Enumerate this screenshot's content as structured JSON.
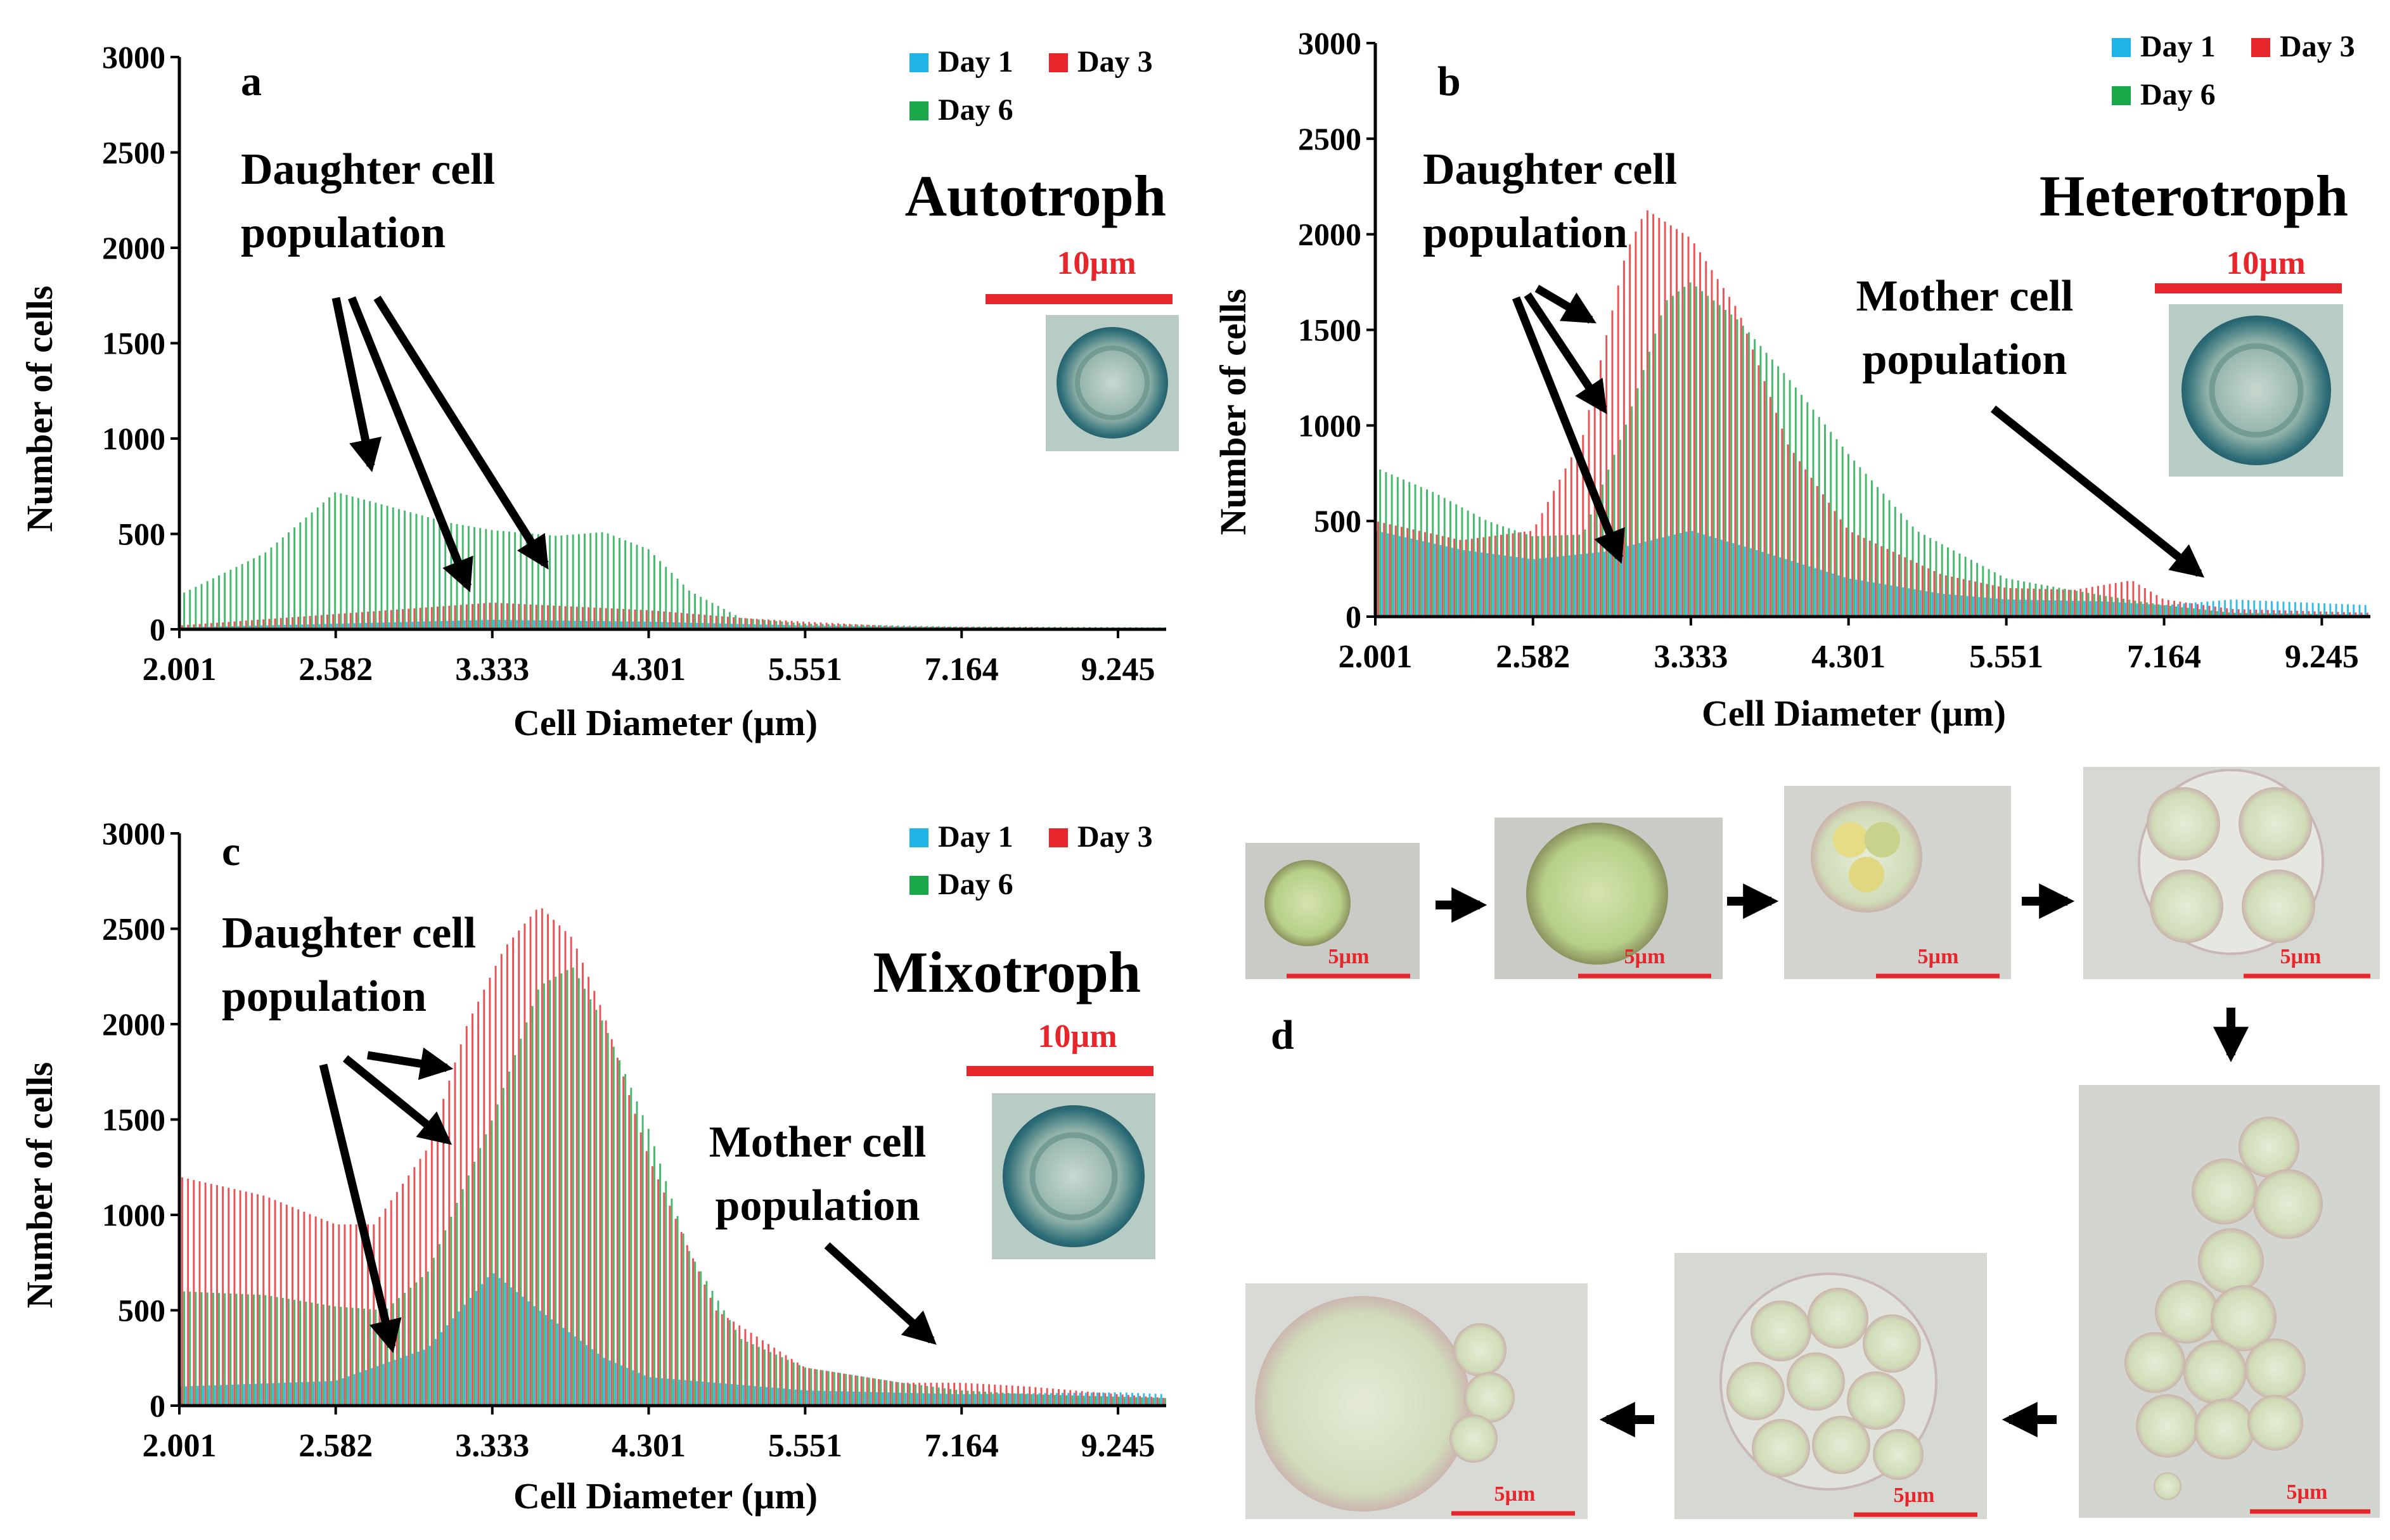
{
  "chart_data": [
    {
      "type": "bar",
      "panel_label": "a",
      "title": "Autotroph",
      "xlabel": "Cell Diameter (µm)",
      "ylabel": "Number of cells",
      "x_ticks": [
        "2.001",
        "2.582",
        "3.333",
        "4.301",
        "5.551",
        "7.164",
        "9.245"
      ],
      "x_range": [
        2.001,
        10.0
      ],
      "x_scale": "log",
      "ylim": [
        0,
        3000
      ],
      "y_ticks": [
        0,
        500,
        1000,
        1500,
        2000,
        2500,
        3000
      ],
      "legend": [
        "Day 1",
        "Day 3",
        "Day 6"
      ],
      "legend_position": "top-right",
      "series": [
        {
          "name": "Day 1",
          "color": "#1EB4E6",
          "profile": [
            [
              2.001,
              10
            ],
            [
              2.6,
              30
            ],
            [
              3.333,
              50
            ],
            [
              4.301,
              40
            ],
            [
              5.551,
              20
            ],
            [
              7.164,
              10
            ],
            [
              10.0,
              5
            ]
          ]
        },
        {
          "name": "Day 3",
          "color": "#E6262B",
          "profile": [
            [
              2.001,
              20
            ],
            [
              2.582,
              80
            ],
            [
              3.333,
              140
            ],
            [
              4.301,
              100
            ],
            [
              5.0,
              60
            ],
            [
              5.551,
              40
            ],
            [
              6.5,
              15
            ],
            [
              10.0,
              5
            ]
          ]
        },
        {
          "name": "Day 6",
          "color": "#1BA84A",
          "profile": [
            [
              2.001,
              180
            ],
            [
              2.3,
              400
            ],
            [
              2.582,
              720
            ],
            [
              2.8,
              650
            ],
            [
              3.1,
              560
            ],
            [
              3.333,
              520
            ],
            [
              3.7,
              490
            ],
            [
              4.0,
              510
            ],
            [
              4.3,
              420
            ],
            [
              4.6,
              200
            ],
            [
              5.0,
              60
            ],
            [
              5.551,
              30
            ],
            [
              7.0,
              15
            ],
            [
              10.0,
              10
            ]
          ]
        }
      ],
      "annotations": [
        {
          "id": "daughter",
          "text": [
            "Daughter cell",
            "population"
          ]
        }
      ],
      "scale_bar": "10µm"
    },
    {
      "type": "bar",
      "panel_label": "b",
      "title": "Heterotroph",
      "xlabel": "Cell Diameter (µm)",
      "ylabel": "Number of cells",
      "x_ticks": [
        "2.001",
        "2.582",
        "3.333",
        "4.301",
        "5.551",
        "7.164",
        "9.245"
      ],
      "x_range": [
        2.001,
        10.0
      ],
      "x_scale": "log",
      "ylim": [
        0,
        3000
      ],
      "y_ticks": [
        0,
        500,
        1000,
        1500,
        2000,
        2500,
        3000
      ],
      "legend": [
        "Day 1",
        "Day 3",
        "Day 6"
      ],
      "legend_position": "top-right",
      "series": [
        {
          "name": "Day 1",
          "color": "#1EB4E6",
          "profile": [
            [
              2.001,
              450
            ],
            [
              2.3,
              350
            ],
            [
              2.582,
              300
            ],
            [
              2.9,
              340
            ],
            [
              3.333,
              450
            ],
            [
              3.7,
              350
            ],
            [
              4.301,
              200
            ],
            [
              5.0,
              120
            ],
            [
              5.551,
              90
            ],
            [
              6.5,
              80
            ],
            [
              7.164,
              60
            ],
            [
              8.0,
              90
            ],
            [
              9.245,
              70
            ],
            [
              10.0,
              60
            ]
          ]
        },
        {
          "name": "Day 3",
          "color": "#E6262B",
          "profile": [
            [
              2.001,
              500
            ],
            [
              2.3,
              400
            ],
            [
              2.582,
              450
            ],
            [
              2.8,
              950
            ],
            [
              3.0,
              1900
            ],
            [
              3.1,
              2130
            ],
            [
              3.333,
              1980
            ],
            [
              3.6,
              1600
            ],
            [
              3.9,
              900
            ],
            [
              4.301,
              450
            ],
            [
              5.0,
              220
            ],
            [
              5.551,
              150
            ],
            [
              6.2,
              140
            ],
            [
              6.8,
              190
            ],
            [
              7.164,
              90
            ],
            [
              8.0,
              40
            ],
            [
              10.0,
              20
            ]
          ]
        },
        {
          "name": "Day 6",
          "color": "#1BA84A",
          "profile": [
            [
              2.001,
              780
            ],
            [
              2.2,
              650
            ],
            [
              2.4,
              500
            ],
            [
              2.582,
              420
            ],
            [
              2.8,
              430
            ],
            [
              3.0,
              1000
            ],
            [
              3.2,
              1650
            ],
            [
              3.333,
              1750
            ],
            [
              3.6,
              1550
            ],
            [
              3.9,
              1250
            ],
            [
              4.301,
              850
            ],
            [
              4.8,
              450
            ],
            [
              5.551,
              200
            ],
            [
              6.5,
              110
            ],
            [
              7.164,
              60
            ],
            [
              8.0,
              20
            ],
            [
              10.0,
              10
            ]
          ]
        }
      ],
      "annotations": [
        {
          "id": "daughter",
          "text": [
            "Daughter cell",
            "population"
          ]
        },
        {
          "id": "mother",
          "text": [
            "Mother cell",
            "population"
          ]
        }
      ],
      "scale_bar": "10µm"
    },
    {
      "type": "bar",
      "panel_label": "c",
      "title": "Mixotroph",
      "xlabel": "Cell Diameter (µm)",
      "ylabel": "Number of cells",
      "x_ticks": [
        "2.001",
        "2.582",
        "3.333",
        "4.301",
        "5.551",
        "7.164",
        "9.245"
      ],
      "x_range": [
        2.001,
        10.0
      ],
      "x_scale": "log",
      "ylim": [
        0,
        3000
      ],
      "y_ticks": [
        0,
        500,
        1000,
        1500,
        2000,
        2500,
        3000
      ],
      "legend": [
        "Day 1",
        "Day 3",
        "Day 6"
      ],
      "legend_position": "top-right",
      "series": [
        {
          "name": "Day 1",
          "color": "#1EB4E6",
          "profile": [
            [
              2.001,
              100
            ],
            [
              2.582,
              130
            ],
            [
              3.0,
              300
            ],
            [
              3.333,
              700
            ],
            [
              3.6,
              500
            ],
            [
              4.0,
              250
            ],
            [
              4.301,
              150
            ],
            [
              5.551,
              80
            ],
            [
              7.164,
              60
            ],
            [
              9.245,
              70
            ],
            [
              10.0,
              60
            ]
          ]
        },
        {
          "name": "Day 3",
          "color": "#E6262B",
          "profile": [
            [
              2.001,
              1200
            ],
            [
              2.3,
              1100
            ],
            [
              2.582,
              950
            ],
            [
              2.75,
              950
            ],
            [
              3.0,
              1350
            ],
            [
              3.2,
              2000
            ],
            [
              3.4,
              2400
            ],
            [
              3.6,
              2620
            ],
            [
              3.8,
              2450
            ],
            [
              4.0,
              2050
            ],
            [
              4.301,
              1300
            ],
            [
              4.8,
              500
            ],
            [
              5.551,
              200
            ],
            [
              6.5,
              120
            ],
            [
              7.164,
              120
            ],
            [
              8.0,
              100
            ],
            [
              9.245,
              60
            ],
            [
              10.0,
              40
            ]
          ]
        },
        {
          "name": "Day 6",
          "color": "#1BA84A",
          "profile": [
            [
              2.001,
              600
            ],
            [
              2.3,
              580
            ],
            [
              2.582,
              520
            ],
            [
              2.8,
              500
            ],
            [
              3.0,
              700
            ],
            [
              3.333,
              1500
            ],
            [
              3.6,
              2200
            ],
            [
              3.8,
              2300
            ],
            [
              4.0,
              2000
            ],
            [
              4.301,
              1450
            ],
            [
              4.6,
              800
            ],
            [
              5.0,
              350
            ],
            [
              5.551,
              200
            ],
            [
              6.5,
              120
            ],
            [
              7.164,
              80
            ],
            [
              8.0,
              60
            ],
            [
              10.0,
              40
            ]
          ]
        }
      ],
      "annotations": [
        {
          "id": "daughter",
          "text": [
            "Daughter cell",
            "population"
          ]
        },
        {
          "id": "mother",
          "text": [
            "Mother cell",
            "population"
          ]
        }
      ],
      "scale_bar": "10µm"
    }
  ],
  "panel_d": {
    "label": "d",
    "scale_label": "5µm",
    "images": [
      {
        "id": "single-cell"
      },
      {
        "id": "enlarged-cell"
      },
      {
        "id": "dividing-cell"
      },
      {
        "id": "four-cell-cluster"
      },
      {
        "id": "chain-colony"
      },
      {
        "id": "multi-cell-cluster"
      },
      {
        "id": "mother-cell-release"
      }
    ]
  }
}
